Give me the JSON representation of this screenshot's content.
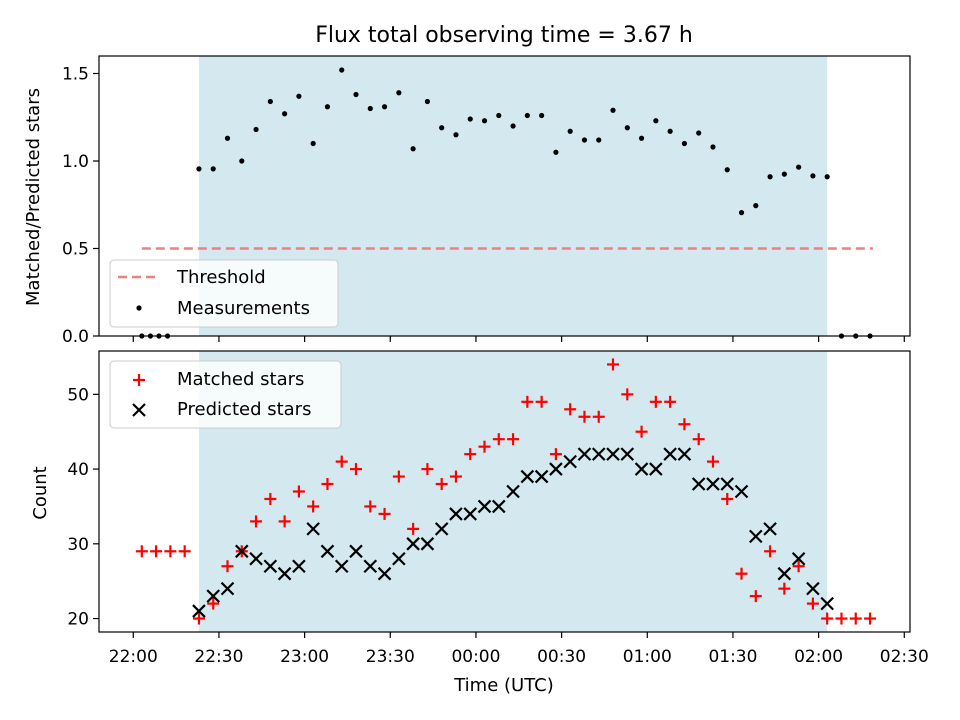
{
  "chart_data": [
    {
      "type": "scatter",
      "title": "Flux total observing time = 3.67 h",
      "ylabel": "Matched/Predicted stars",
      "xlabel": "",
      "ylim": [
        0,
        1.6
      ],
      "yticks": [
        "0.0",
        "0.5",
        "1.0",
        "1.5"
      ],
      "shaded_region": {
        "from": "22:23",
        "to": "02:03",
        "color": "#d3e9ef"
      },
      "legend_position": "lower-left",
      "threshold": {
        "name": "Threshold",
        "y": 0.5,
        "x_from": "22:03",
        "x_to": "02:19",
        "color": "#f07f7f"
      },
      "series": [
        {
          "name": "Measurements",
          "marker": "dot",
          "color": "#000000",
          "points": [
            [
              "22:03",
              0
            ],
            [
              "22:06",
              0
            ],
            [
              "22:09",
              0
            ],
            [
              "22:12",
              0
            ],
            [
              "22:23",
              0.955
            ],
            [
              "22:28",
              0.955
            ],
            [
              "22:33",
              1.13
            ],
            [
              "22:38",
              1.0
            ],
            [
              "22:43",
              1.18
            ],
            [
              "22:48",
              1.34
            ],
            [
              "22:53",
              1.27
            ],
            [
              "22:58",
              1.37
            ],
            [
              "23:03",
              1.1
            ],
            [
              "23:08",
              1.31
            ],
            [
              "23:13",
              1.52
            ],
            [
              "23:18",
              1.38
            ],
            [
              "23:23",
              1.3
            ],
            [
              "23:28",
              1.31
            ],
            [
              "23:33",
              1.39
            ],
            [
              "23:38",
              1.07
            ],
            [
              "23:43",
              1.34
            ],
            [
              "23:48",
              1.19
            ],
            [
              "23:53",
              1.15
            ],
            [
              "23:58",
              1.24
            ],
            [
              "00:03",
              1.23
            ],
            [
              "00:08",
              1.26
            ],
            [
              "00:13",
              1.2
            ],
            [
              "00:18",
              1.26
            ],
            [
              "00:23",
              1.26
            ],
            [
              "00:28",
              1.05
            ],
            [
              "00:33",
              1.17
            ],
            [
              "00:38",
              1.12
            ],
            [
              "00:43",
              1.12
            ],
            [
              "00:48",
              1.29
            ],
            [
              "00:53",
              1.19
            ],
            [
              "00:58",
              1.13
            ],
            [
              "01:03",
              1.23
            ],
            [
              "01:08",
              1.17
            ],
            [
              "01:13",
              1.1
            ],
            [
              "01:18",
              1.16
            ],
            [
              "01:23",
              1.08
            ],
            [
              "01:28",
              0.95
            ],
            [
              "01:33",
              0.705
            ],
            [
              "01:38",
              0.745
            ],
            [
              "01:43",
              0.91
            ],
            [
              "01:48",
              0.925
            ],
            [
              "01:53",
              0.965
            ],
            [
              "01:58",
              0.915
            ],
            [
              "02:03",
              0.91
            ],
            [
              "02:08",
              0
            ],
            [
              "02:13",
              0
            ],
            [
              "02:18",
              0
            ]
          ]
        }
      ]
    },
    {
      "type": "scatter",
      "title": "",
      "xlabel": "Time (UTC)",
      "ylabel": "Count",
      "ylim": [
        18.2,
        55.8
      ],
      "yticks": [
        "20",
        "30",
        "40",
        "50"
      ],
      "xticks": [
        "22:00",
        "22:30",
        "23:00",
        "23:30",
        "00:00",
        "00:30",
        "01:00",
        "01:30",
        "02:00",
        "02:30"
      ],
      "xlim": [
        "21:48",
        "02:32"
      ],
      "shaded_region": {
        "from": "22:23",
        "to": "02:03",
        "color": "#d3e9ef"
      },
      "legend_position": "upper-left",
      "series": [
        {
          "name": "Matched stars",
          "marker": "plus",
          "color": "#ff0000",
          "points": [
            [
              "22:03",
              29
            ],
            [
              "22:08",
              29
            ],
            [
              "22:13",
              29
            ],
            [
              "22:18",
              29
            ],
            [
              "22:23",
              20
            ],
            [
              "22:28",
              22
            ],
            [
              "22:33",
              27
            ],
            [
              "22:38",
              29
            ],
            [
              "22:43",
              33
            ],
            [
              "22:48",
              36
            ],
            [
              "22:53",
              33
            ],
            [
              "22:58",
              37
            ],
            [
              "23:03",
              35
            ],
            [
              "23:08",
              38
            ],
            [
              "23:13",
              41
            ],
            [
              "23:18",
              40
            ],
            [
              "23:23",
              35
            ],
            [
              "23:28",
              34
            ],
            [
              "23:33",
              39
            ],
            [
              "23:38",
              32
            ],
            [
              "23:43",
              40
            ],
            [
              "23:48",
              38
            ],
            [
              "23:53",
              39
            ],
            [
              "23:58",
              42
            ],
            [
              "00:03",
              43
            ],
            [
              "00:08",
              44
            ],
            [
              "00:13",
              44
            ],
            [
              "00:18",
              49
            ],
            [
              "00:23",
              49
            ],
            [
              "00:28",
              42
            ],
            [
              "00:33",
              48
            ],
            [
              "00:38",
              47
            ],
            [
              "00:43",
              47
            ],
            [
              "00:48",
              54
            ],
            [
              "00:53",
              50
            ],
            [
              "00:58",
              45
            ],
            [
              "01:03",
              49
            ],
            [
              "01:08",
              49
            ],
            [
              "01:13",
              46
            ],
            [
              "01:18",
              44
            ],
            [
              "01:23",
              41
            ],
            [
              "01:28",
              36
            ],
            [
              "01:33",
              26
            ],
            [
              "01:38",
              23
            ],
            [
              "01:43",
              29
            ],
            [
              "01:48",
              24
            ],
            [
              "01:53",
              27
            ],
            [
              "01:58",
              22
            ],
            [
              "02:03",
              20
            ],
            [
              "02:08",
              20
            ],
            [
              "02:13",
              20
            ],
            [
              "02:18",
              20
            ]
          ]
        },
        {
          "name": "Predicted stars",
          "marker": "x",
          "color": "#000000",
          "points": [
            [
              "22:23",
              21
            ],
            [
              "22:28",
              23
            ],
            [
              "22:33",
              24
            ],
            [
              "22:38",
              29
            ],
            [
              "22:43",
              28
            ],
            [
              "22:48",
              27
            ],
            [
              "22:53",
              26
            ],
            [
              "22:58",
              27
            ],
            [
              "23:03",
              32
            ],
            [
              "23:08",
              29
            ],
            [
              "23:13",
              27
            ],
            [
              "23:18",
              29
            ],
            [
              "23:23",
              27
            ],
            [
              "23:28",
              26
            ],
            [
              "23:33",
              28
            ],
            [
              "23:38",
              30
            ],
            [
              "23:43",
              30
            ],
            [
              "23:48",
              32
            ],
            [
              "23:53",
              34
            ],
            [
              "23:58",
              34
            ],
            [
              "00:03",
              35
            ],
            [
              "00:08",
              35
            ],
            [
              "00:13",
              37
            ],
            [
              "00:18",
              39
            ],
            [
              "00:23",
              39
            ],
            [
              "00:28",
              40
            ],
            [
              "00:33",
              41
            ],
            [
              "00:38",
              42
            ],
            [
              "00:43",
              42
            ],
            [
              "00:48",
              42
            ],
            [
              "00:53",
              42
            ],
            [
              "00:58",
              40
            ],
            [
              "01:03",
              40
            ],
            [
              "01:08",
              42
            ],
            [
              "01:13",
              42
            ],
            [
              "01:18",
              38
            ],
            [
              "01:23",
              38
            ],
            [
              "01:28",
              38
            ],
            [
              "01:33",
              37
            ],
            [
              "01:38",
              31
            ],
            [
              "01:43",
              32
            ],
            [
              "01:48",
              26
            ],
            [
              "01:53",
              28
            ],
            [
              "01:58",
              24
            ],
            [
              "02:03",
              22
            ]
          ]
        }
      ]
    }
  ]
}
